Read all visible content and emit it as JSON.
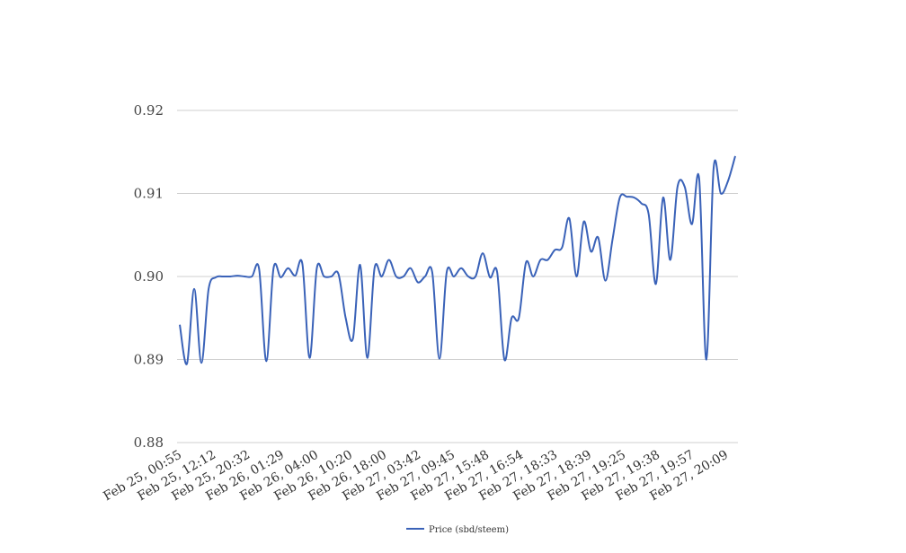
{
  "chart_data": {
    "type": "line",
    "title": "",
    "xlabel": "",
    "ylabel": "",
    "ylim": [
      0.88,
      0.92
    ],
    "yticks": [
      "0.88",
      "0.89",
      "0.90",
      "0.91",
      "0.92"
    ],
    "grid": true,
    "legend_position": "bottom-center",
    "colors": {
      "series": "#3a62b8",
      "grid": "#cfcfcf"
    },
    "x_tick_labels": [
      "Feb 25, 00:55",
      "Feb 25, 12:12",
      "Feb 25, 20:32",
      "Feb 26, 01:29",
      "Feb 26, 04:00",
      "Feb 26, 10:20",
      "Feb 26, 18:00",
      "Feb 27, 03:42",
      "Feb 27, 09:45",
      "Feb 27, 15:48",
      "Feb 27, 16:54",
      "Feb 27, 18:33",
      "Feb 27, 18:39",
      "Feb 27, 19:25",
      "Feb 27, 19:38",
      "Feb 27, 19:57",
      "Feb 27, 20:09"
    ],
    "series": [
      {
        "name": "Price (sbd/steem)",
        "values": [
          0.8942,
          0.8895,
          0.8985,
          0.8896,
          0.8985,
          0.8999,
          0.9,
          0.9,
          0.9001,
          0.9,
          0.9,
          0.9009,
          0.8898,
          0.901,
          0.8999,
          0.901,
          0.9001,
          0.9015,
          0.8902,
          0.901,
          0.9,
          0.9,
          0.9003,
          0.895,
          0.8925,
          0.9014,
          0.8902,
          0.901,
          0.9,
          0.902,
          0.9,
          0.9,
          0.901,
          0.8993,
          0.9,
          0.9005,
          0.8901,
          0.9005,
          0.9,
          0.901,
          0.9,
          0.9,
          0.9028,
          0.8999,
          0.9005,
          0.89,
          0.895,
          0.895,
          0.9017,
          0.9,
          0.902,
          0.902,
          0.9032,
          0.9035,
          0.907,
          0.9,
          0.9066,
          0.903,
          0.9047,
          0.8995,
          0.9045,
          0.9095,
          0.9096,
          0.9095,
          0.9088,
          0.9075,
          0.8991,
          0.9095,
          0.902,
          0.9108,
          0.9108,
          0.9063,
          0.9118,
          0.89,
          0.913,
          0.91,
          0.9115,
          0.9145
        ]
      }
    ]
  }
}
